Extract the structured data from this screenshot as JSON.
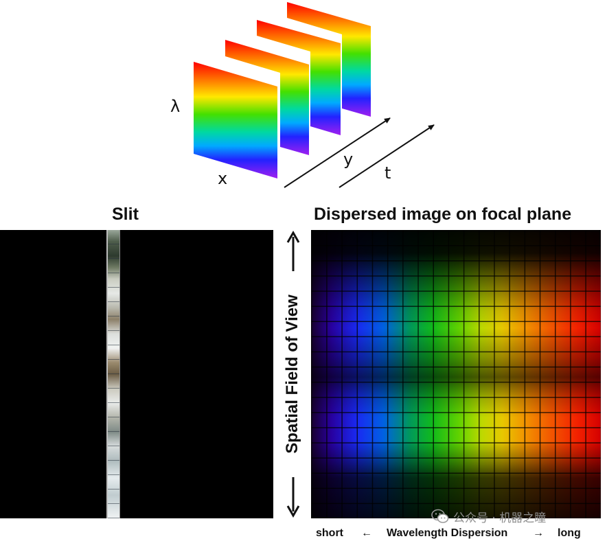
{
  "cube": {
    "axis_lambda": "λ",
    "axis_x": "x",
    "axis_y": "y",
    "axis_t": "t"
  },
  "slit": {
    "title": "Slit"
  },
  "dispersed": {
    "title": "Dispersed image on focal plane",
    "fov_label": "Spatial Field of View",
    "axis_short": "short",
    "axis_arrow_left": "←",
    "axis_label": "Wavelength Dispersion",
    "axis_arrow_right": "→",
    "axis_long": "long"
  },
  "watermark": {
    "text": "公众号 · 机器之瞳",
    "icon": "wechat-icon"
  },
  "colors": {
    "spectrum_red": "#ff0000",
    "spectrum_green": "#11c41c",
    "spectrum_blue": "#1a2cff",
    "spectrum_violet": "#a020f0"
  }
}
